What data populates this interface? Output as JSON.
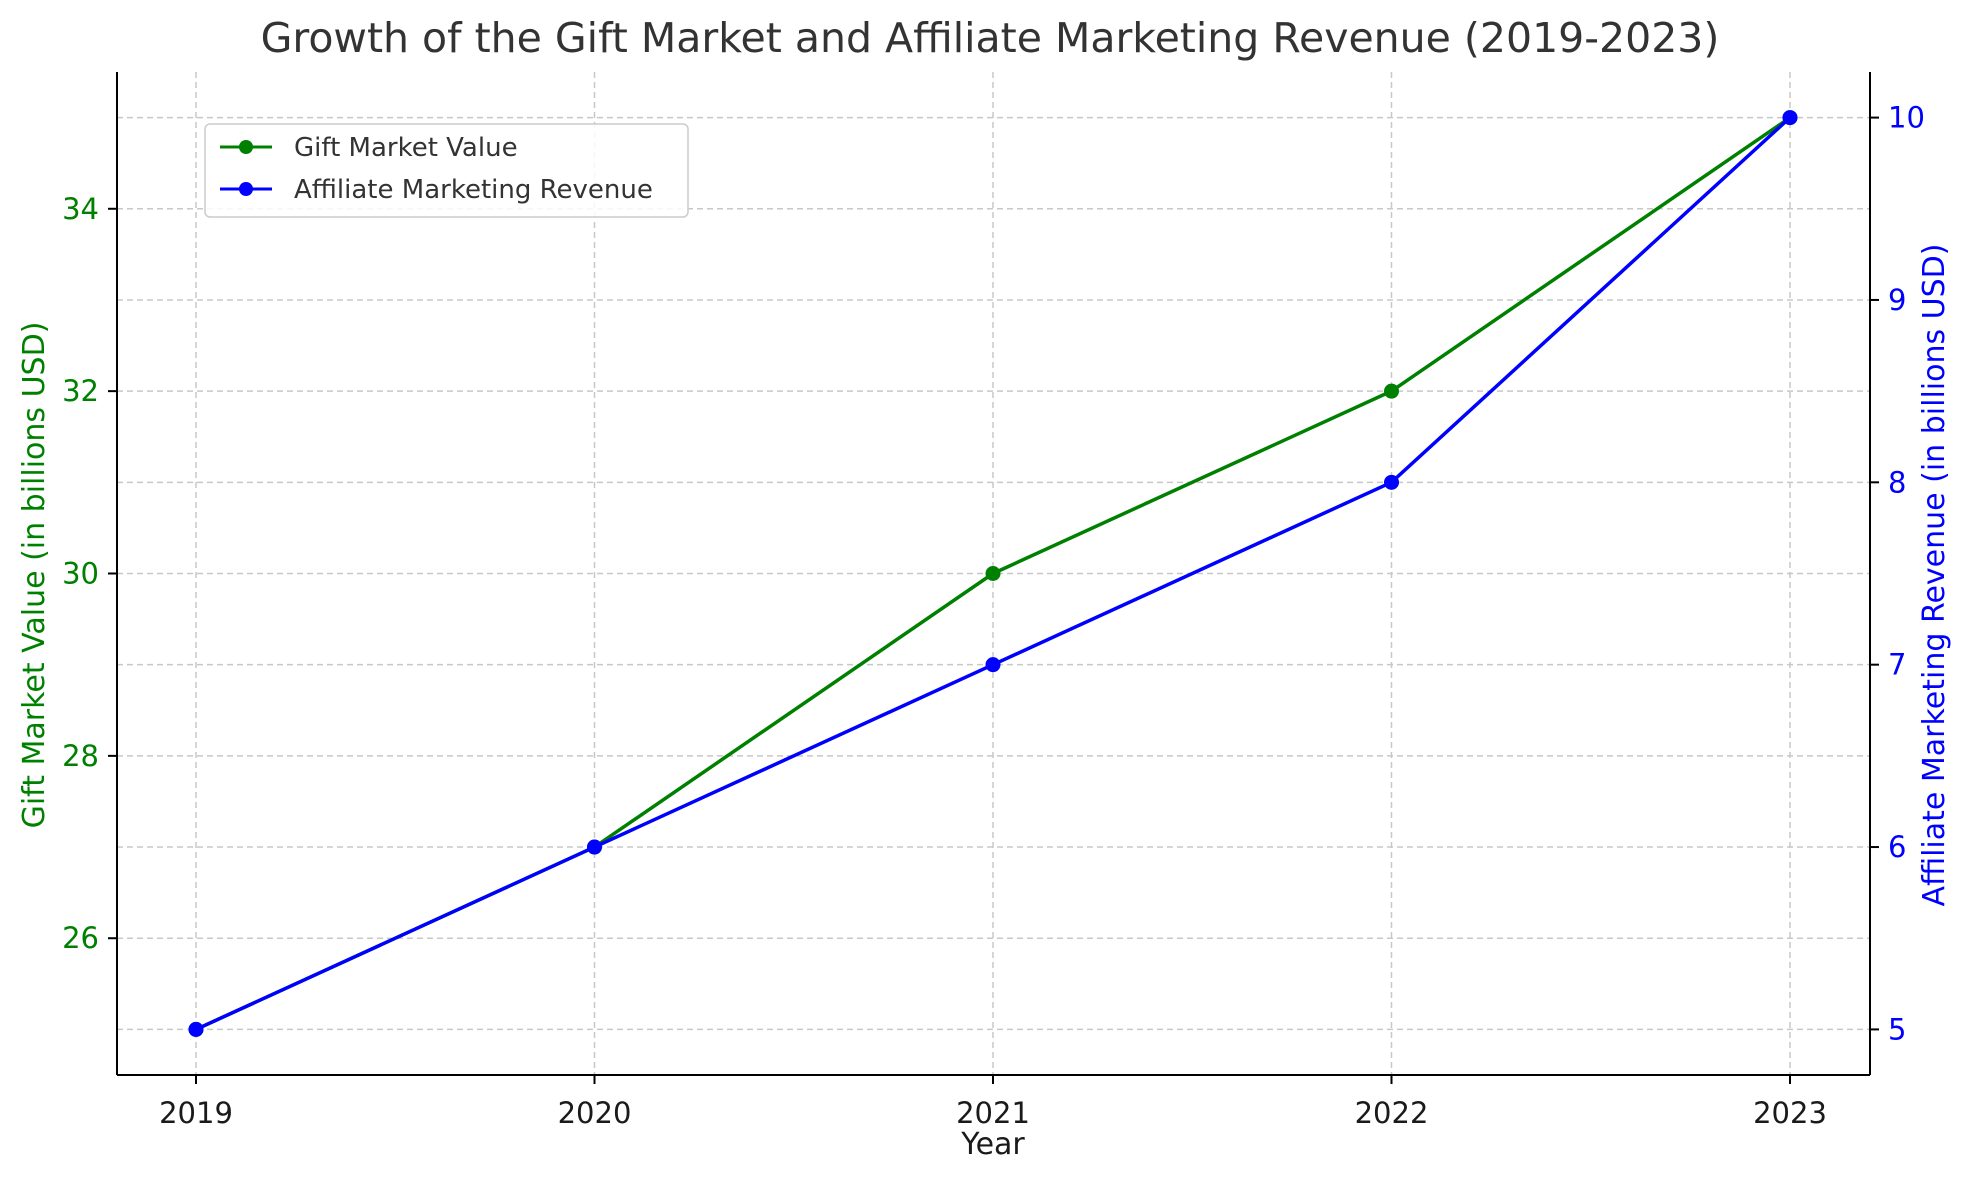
{
  "chart_data": {
    "type": "line",
    "title": "Growth of the Gift Market and Affiliate Marketing Revenue (2019-2023)",
    "xlabel": "Year",
    "categories": [
      "2019",
      "2020",
      "2021",
      "2022",
      "2023"
    ],
    "y_left": {
      "label": "Gift Market Value (in billions USD)",
      "range": [
        24.5,
        35.5
      ],
      "ticks": [
        26,
        28,
        30,
        32,
        34
      ],
      "color": "#008000"
    },
    "y_right": {
      "label": "Affiliate Marketing Revenue (in billions USD)",
      "range": [
        4.75,
        10.25
      ],
      "ticks": [
        5,
        6,
        7,
        8,
        9,
        10
      ],
      "color": "#0000ff"
    },
    "series": [
      {
        "name": "Gift Market Value",
        "axis": "left",
        "color": "#008000",
        "values": [
          25,
          27,
          30,
          32,
          35
        ]
      },
      {
        "name": "Affiliate Marketing Revenue",
        "axis": "right",
        "color": "#0000ff",
        "values": [
          5,
          6,
          7,
          8,
          10
        ]
      }
    ],
    "grid": true,
    "legend_position": "top-left"
  }
}
